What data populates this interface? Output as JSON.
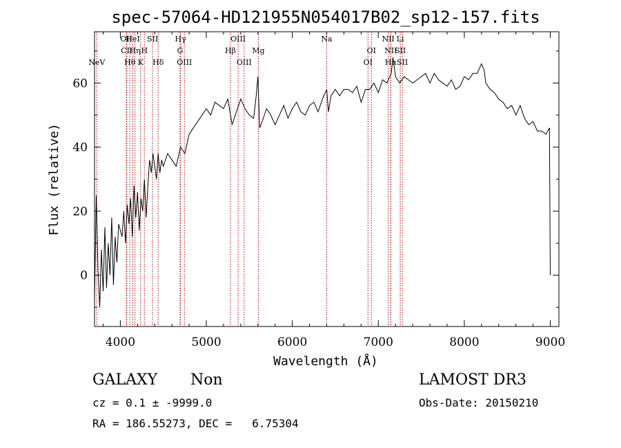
{
  "chart_data": {
    "type": "line",
    "title": "spec-57064-HD121955N054017B02_sp12-157.fits",
    "xlabel": "Wavelength (Å)",
    "ylabel": "Flux (relative)",
    "xlim": [
      3700,
      9100
    ],
    "ylim": [
      -16,
      76
    ],
    "xticks": [
      4000,
      5000,
      6000,
      7000,
      8000,
      9000
    ],
    "yticks": [
      0,
      20,
      40,
      60
    ],
    "grid": false,
    "line_color": "#000000",
    "marker_color": "#b00000",
    "series": [
      {
        "values_x": [
          3700,
          3720,
          3740,
          3760,
          3780,
          3800,
          3820,
          3840,
          3860,
          3880,
          3900,
          3920,
          3940,
          3960,
          3980,
          4000,
          4020,
          4040,
          4060,
          4080,
          4100,
          4120,
          4140,
          4160,
          4180,
          4200,
          4220,
          4240,
          4260,
          4280,
          4300,
          4320,
          4340,
          4360,
          4380,
          4400,
          4420,
          4440,
          4460,
          4480,
          4500,
          4550,
          4600,
          4650,
          4700,
          4750,
          4800,
          4850,
          4900,
          4950,
          5000,
          5050,
          5100,
          5150,
          5200,
          5250,
          5300,
          5350,
          5400,
          5450,
          5500,
          5550,
          5580,
          5600,
          5620,
          5650,
          5700,
          5750,
          5800,
          5850,
          5900,
          5950,
          6000,
          6050,
          6100,
          6150,
          6200,
          6250,
          6300,
          6350,
          6400,
          6420,
          6450,
          6500,
          6550,
          6600,
          6650,
          6700,
          6750,
          6800,
          6850,
          6900,
          6950,
          7000,
          7050,
          7100,
          7150,
          7170,
          7200,
          7250,
          7300,
          7350,
          7400,
          7450,
          7500,
          7550,
          7600,
          7650,
          7700,
          7750,
          7800,
          7850,
          7900,
          7950,
          8000,
          8050,
          8100,
          8150,
          8200,
          8230,
          8250,
          8300,
          8350,
          8400,
          8450,
          8500,
          8550,
          8600,
          8650,
          8700,
          8750,
          8800,
          8850,
          8900,
          8950,
          8990,
          9000
        ],
        "values_y": [
          -8,
          25,
          2,
          -10,
          8,
          -5,
          15,
          -4,
          10,
          0,
          18,
          -3,
          12,
          4,
          16,
          14,
          12,
          20,
          10,
          22,
          16,
          24,
          12,
          28,
          18,
          26,
          14,
          24,
          20,
          30,
          18,
          28,
          36,
          32,
          38,
          34,
          30,
          38,
          32,
          36,
          34,
          38,
          36,
          34,
          40,
          38,
          44,
          46,
          48,
          50,
          52,
          50,
          54,
          53,
          52,
          55,
          47,
          51,
          55,
          52,
          50,
          49,
          56,
          62,
          46,
          48,
          52,
          50,
          47,
          50,
          53,
          49,
          52,
          54,
          51,
          50,
          53,
          54,
          51,
          55,
          58,
          51,
          56,
          58,
          56,
          58,
          58,
          57,
          59,
          54,
          58,
          58,
          60,
          57,
          61,
          60,
          63,
          68,
          62,
          60,
          62,
          61,
          60,
          61,
          62,
          63,
          60,
          63,
          61,
          60,
          59,
          61,
          58,
          59,
          62,
          61,
          63,
          63,
          66,
          64,
          60,
          58,
          57,
          55,
          54,
          52,
          53,
          50,
          53,
          49,
          47,
          48,
          45,
          45,
          44,
          46,
          0
        ]
      }
    ],
    "lines": [
      {
        "name": "NeV",
        "x": 3726,
        "row": 2
      },
      {
        "name": "OII",
        "x": 4070,
        "row": 0
      },
      {
        "name": "CII",
        "x": 4075,
        "row": 1
      },
      {
        "name": "Hθ",
        "x": 4110,
        "row": 2
      },
      {
        "name": "HeI",
        "x": 4145,
        "row": 0
      },
      {
        "name": "Hη",
        "x": 4170,
        "row": 1
      },
      {
        "name": "K",
        "x": 4235,
        "row": 2
      },
      {
        "name": "H",
        "x": 4280,
        "row": 1
      },
      {
        "name": "SII",
        "x": 4375,
        "row": 0
      },
      {
        "name": "Hδ",
        "x": 4440,
        "row": 2
      },
      {
        "name": "Hγ",
        "x": 4700,
        "row": 0
      },
      {
        "name": "G",
        "x": 4695,
        "row": 1
      },
      {
        "name": "OIII",
        "x": 4745,
        "row": 2
      },
      {
        "name": "Hβ",
        "x": 5280,
        "row": 1
      },
      {
        "name": "OIII",
        "x": 5370,
        "row": 0
      },
      {
        "name": "OIII",
        "x": 5440,
        "row": 2
      },
      {
        "name": "Mg",
        "x": 5605,
        "row": 1
      },
      {
        "name": "Na",
        "x": 6400,
        "row": 0
      },
      {
        "name": "OI",
        "x": 6920,
        "row": 1
      },
      {
        "name": "OI",
        "x": 6880,
        "row": 2
      },
      {
        "name": "NII",
        "x": 7115,
        "row": 0
      },
      {
        "name": "NII",
        "x": 7145,
        "row": 1
      },
      {
        "name": "Hα",
        "x": 7145,
        "row": 2
      },
      {
        "name": "Li",
        "x": 7255,
        "row": 0
      },
      {
        "name": "SII",
        "x": 7255,
        "row": 1
      },
      {
        "name": "SII",
        "x": 7280,
        "row": 2
      }
    ]
  },
  "info": {
    "class_label": "GALAXY",
    "subclass_label": "Non",
    "survey": "LAMOST DR3",
    "cz_line": "cz = 0.1 ± -9999.0",
    "obs_date": "Obs-Date: 20150210",
    "radec_line": "RA = 186.55273, DEC =   6.75304"
  }
}
